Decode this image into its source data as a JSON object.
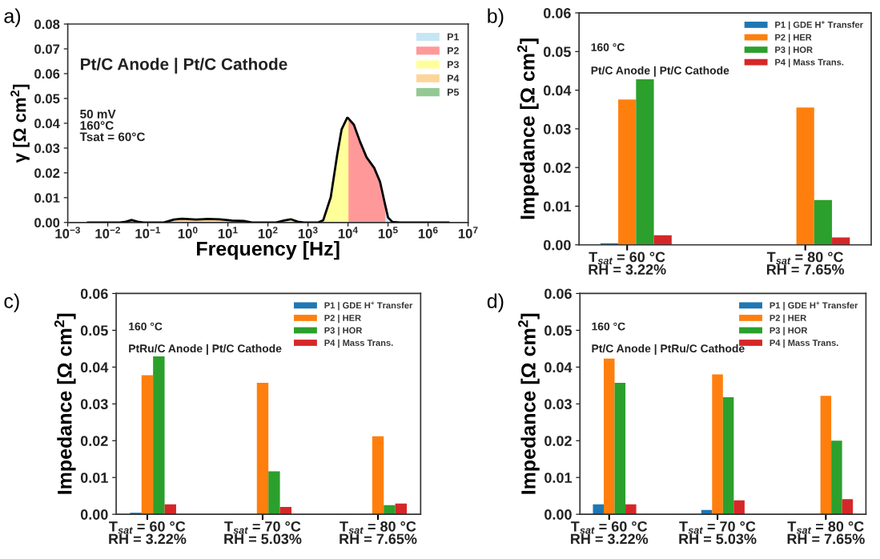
{
  "chart_data": [
    {
      "type": "area",
      "xlabel": "Frequency [Hz]",
      "ylabel": "γ [Ω cm$^{2}$]",
      "log": "x",
      "legend": "top right",
      "annotations": [
        "a)",
        "Pt/C Anode | Pt/C Cathode",
        "50 mV\n160°C\nTsat = 60°C"
      ],
      "xlim": [
        0.001,
        10000000
      ],
      "ylim": [
        0,
        0.08
      ],
      "xticks": [
        {
          "value": 0.001,
          "label": "10$^{−3}$"
        },
        {
          "value": 0.01,
          "label": "10$^{−2}$"
        },
        {
          "value": 0.1,
          "label": "10$^{−1}$"
        },
        {
          "value": 1,
          "label": "10$^{0}$"
        },
        {
          "value": 10,
          "label": "10$^{1}$"
        },
        {
          "value": 100,
          "label": "10$^{2}$"
        },
        {
          "value": 1000,
          "label": "10$^{3}$"
        },
        {
          "value": 10000,
          "label": "10$^{4}$"
        },
        {
          "value": 100000,
          "label": "10$^{5}$"
        },
        {
          "value": 1000000,
          "label": "10$^{6}$"
        },
        {
          "value": 10000000,
          "label": "10$^{7}$"
        }
      ],
      "yticks": [
        {
          "value": 0,
          "label": "0.00"
        },
        {
          "value": 0.01,
          "label": "0.01"
        },
        {
          "value": 0.02,
          "label": "0.02"
        },
        {
          "value": 0.03,
          "label": "0.03"
        },
        {
          "value": 0.04,
          "label": "0.04"
        },
        {
          "value": 0.05,
          "label": "0.05"
        },
        {
          "value": 0.06,
          "label": "0.06"
        },
        {
          "value": 0.07,
          "label": "0.07"
        },
        {
          "value": 0.08,
          "label": "0.08"
        }
      ],
      "series": [
        {
          "name": "P1",
          "type": "area",
          "color": "#c6e6f5",
          "x": [
            83000,
            100000,
            129000,
            200000
          ],
          "values": [
            0.0077,
            0.002,
            0.0002,
            0
          ]
        },
        {
          "name": "P2",
          "type": "area",
          "color": "#ff9999",
          "x": [
            10000,
            14000,
            20000,
            29000,
            45000,
            63000,
            83000
          ],
          "values": [
            0.0421,
            0.0394,
            0.0325,
            0.0263,
            0.022,
            0.0164,
            0.0077
          ]
        },
        {
          "name": "P3",
          "type": "area",
          "color": "#ffff99",
          "x": [
            160,
            250,
            370,
            560,
            800,
            1000,
            1800,
            2400,
            3700,
            5400,
            6900,
            9500,
            10000
          ],
          "values": [
            0,
            0.0008,
            0.0013,
            0.0003,
            0,
            null,
            0,
            0.0009,
            0.0102,
            0.0276,
            0.0375,
            0.0422,
            0.0421
          ]
        },
        {
          "name": "P4",
          "type": "area",
          "color": "#fdd59a",
          "x": [
            0.25,
            0.45,
            0.71,
            1.6,
            3.2,
            6.3,
            12.6,
            25,
            40
          ],
          "values": [
            0,
            0.0012,
            0.0015,
            0.0012,
            0.0014,
            0.0013,
            0.0008,
            0.0006,
            0
          ]
        },
        {
          "name": "P5",
          "type": "area",
          "color": "#93c993",
          "x": [
            0.02,
            0.028,
            0.04,
            0.056,
            0.079
          ],
          "values": [
            0,
            0.0003,
            0.001,
            0.0003,
            0
          ]
        },
        {
          "type": "line",
          "color": "#000000",
          "x": [
            0.0032,
            0.02,
            0.028,
            0.04,
            0.056,
            0.079,
            0.25,
            0.45,
            0.71,
            1.6,
            3.2,
            6.3,
            12.6,
            25,
            40,
            160,
            250,
            370,
            560,
            800,
            1800,
            2400,
            3700,
            5400,
            6900,
            9500,
            10000,
            14000,
            20000,
            29000,
            45000,
            63000,
            83000,
            100000,
            129000,
            200000,
            3200000
          ],
          "values": [
            0,
            0,
            0.0003,
            0.001,
            0.0003,
            0,
            0,
            0.0012,
            0.0015,
            0.0012,
            0.0014,
            0.0013,
            0.0008,
            0.0006,
            0,
            0,
            0.0008,
            0.0013,
            0.0003,
            0,
            0,
            0.0009,
            0.0102,
            0.0276,
            0.0375,
            0.0422,
            0.0421,
            0.0394,
            0.0325,
            0.0263,
            0.022,
            0.0164,
            0.0077,
            0.002,
            0.0002,
            0,
            0
          ]
        }
      ]
    },
    {
      "type": "bar",
      "ylabel": "Impedance [Ω cm$^{2}$]",
      "legend": "top right",
      "annotations": [
        "b)",
        "160 °C",
        "Pt/C Anode | Pt/C Cathode"
      ],
      "categories": [
        "T$_{sat}$ = 60 °C\nRH = 3.22%",
        "T$_{sat}$ = 80 °C\nRH = 7.65%"
      ],
      "ylim": [
        0,
        0.06
      ],
      "yticks": [
        {
          "value": 0,
          "label": "0.00"
        },
        {
          "value": 0.01,
          "label": "0.01"
        },
        {
          "value": 0.02,
          "label": "0.02"
        },
        {
          "value": 0.03,
          "label": "0.03"
        },
        {
          "value": 0.04,
          "label": "0.04"
        },
        {
          "value": 0.05,
          "label": "0.05"
        },
        {
          "value": 0.06,
          "label": "0.06"
        }
      ],
      "series": [
        {
          "name": "P1 | GDE H$^{+}$ Transfer",
          "color": "#1f77b4",
          "values": [
            0.0004,
            0
          ]
        },
        {
          "name": "P2 | HER",
          "color": "#ff7f0e",
          "values": [
            0.0376,
            0.0355
          ]
        },
        {
          "name": "P3 | HOR",
          "color": "#2ca02c",
          "values": [
            0.0428,
            0.0116
          ]
        },
        {
          "name": "P4 | Mass Trans.",
          "color": "#d62728",
          "values": [
            0.0025,
            0.0019
          ]
        }
      ]
    },
    {
      "type": "bar",
      "ylabel": "Impedance [Ω cm$^{2}$]",
      "legend": "top right",
      "annotations": [
        "c)",
        "160 °C",
        "PtRu/C Anode | Pt/C Cathode"
      ],
      "categories": [
        "T$_{sat}$ = 60 °C\nRH = 3.22%",
        "T$_{sat}$ = 70 °C\nRH = 5.03%",
        "T$_{sat}$ = 80 °C\nRH = 7.65%"
      ],
      "ylim": [
        0,
        0.06
      ],
      "yticks": [
        {
          "value": 0,
          "label": "0.00"
        },
        {
          "value": 0.01,
          "label": "0.01"
        },
        {
          "value": 0.02,
          "label": "0.02"
        },
        {
          "value": 0.03,
          "label": "0.03"
        },
        {
          "value": 0.04,
          "label": "0.04"
        },
        {
          "value": 0.05,
          "label": "0.05"
        },
        {
          "value": 0.06,
          "label": "0.06"
        }
      ],
      "series": [
        {
          "name": "P1 | GDE H$^{+}$ Transfer",
          "color": "#1f77b4",
          "values": [
            0.0004,
            null,
            0
          ]
        },
        {
          "name": "P2 | HER",
          "color": "#ff7f0e",
          "values": [
            0.0378,
            0.0357,
            0.0212
          ]
        },
        {
          "name": "P3 | HOR",
          "color": "#2ca02c",
          "values": [
            0.0429,
            0.0117,
            0.0025
          ]
        },
        {
          "name": "P4 | Mass Trans.",
          "color": "#d62728",
          "values": [
            0.0027,
            0.002,
            0.0029
          ]
        }
      ]
    },
    {
      "type": "bar",
      "ylabel": "Impedance [Ω cm$^{2}$]",
      "legend": "top right",
      "annotations": [
        "d)",
        "160 °C",
        "Pt/C Anode | PtRu/C Cathode"
      ],
      "categories": [
        "T$_{sat}$ = 60 °C\nRH = 3.22%",
        "T$_{sat}$ = 70 °C\nRH = 5.03%",
        "T$_{sat}$ = 80 °C\nRH = 7.65%"
      ],
      "ylim": [
        0,
        0.06
      ],
      "yticks": [
        {
          "value": 0,
          "label": "0.00"
        },
        {
          "value": 0.01,
          "label": "0.01"
        },
        {
          "value": 0.02,
          "label": "0.02"
        },
        {
          "value": 0.03,
          "label": "0.03"
        },
        {
          "value": 0.04,
          "label": "0.04"
        },
        {
          "value": 0.05,
          "label": "0.05"
        },
        {
          "value": 0.06,
          "label": "0.06"
        }
      ],
      "series": [
        {
          "name": "P1 | GDE H$^{+}$ Transfer",
          "color": "#1f77b4",
          "values": [
            0.0027,
            0.0012,
            null
          ]
        },
        {
          "name": "P2 | HER",
          "color": "#ff7f0e",
          "values": [
            0.0423,
            0.038,
            0.0322
          ]
        },
        {
          "name": "P3 | HOR",
          "color": "#2ca02c",
          "values": [
            0.0357,
            0.0318,
            0.02
          ]
        },
        {
          "name": "P4 | Mass Trans.",
          "color": "#d62728",
          "values": [
            0.0027,
            0.0038,
            0.0041
          ]
        }
      ]
    }
  ]
}
